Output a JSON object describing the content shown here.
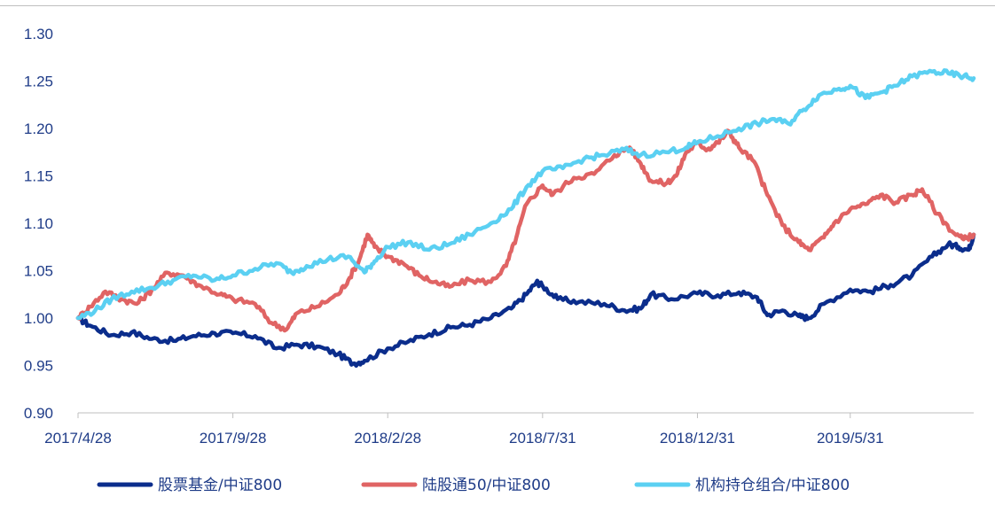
{
  "chart_data": {
    "type": "line",
    "title": "",
    "xlabel": "",
    "ylabel": "",
    "x_tick_labels": [
      "2017/4/28",
      "2017/9/28",
      "2018/2/28",
      "2018/7/31",
      "2018/12/31",
      "2019/5/31"
    ],
    "x_range": [
      "2017/4/28",
      "2019/9/30"
    ],
    "y_ticks": [
      "0.90",
      "0.95",
      "1.00",
      "1.05",
      "1.10",
      "1.15",
      "1.20",
      "1.25",
      "1.30"
    ],
    "ylim": [
      0.9,
      1.3
    ],
    "grid": false,
    "legend_position": "bottom",
    "series": [
      {
        "name": "股票基金/中证800",
        "color": "#0b2d8c",
        "points": [
          [
            "2017/4/28",
            1.0
          ],
          [
            "2017/5/10",
            0.992
          ],
          [
            "2017/5/31",
            0.982
          ],
          [
            "2017/6/20",
            0.985
          ],
          [
            "2017/7/10",
            0.978
          ],
          [
            "2017/7/31",
            0.976
          ],
          [
            "2017/8/20",
            0.981
          ],
          [
            "2017/9/10",
            0.984
          ],
          [
            "2017/9/28",
            0.984
          ],
          [
            "2017/10/20",
            0.981
          ],
          [
            "2017/11/10",
            0.968
          ],
          [
            "2017/11/30",
            0.972
          ],
          [
            "2017/12/20",
            0.97
          ],
          [
            "2018/1/10",
            0.962
          ],
          [
            "2018/1/25",
            0.952
          ],
          [
            "2018/2/5",
            0.955
          ],
          [
            "2018/2/28",
            0.968
          ],
          [
            "2018/3/20",
            0.975
          ],
          [
            "2018/4/10",
            0.983
          ],
          [
            "2018/5/1",
            0.99
          ],
          [
            "2018/5/20",
            0.993
          ],
          [
            "2018/6/10",
            1.0
          ],
          [
            "2018/6/30",
            1.01
          ],
          [
            "2018/7/15",
            1.025
          ],
          [
            "2018/7/25",
            1.038
          ],
          [
            "2018/7/31",
            1.034
          ],
          [
            "2018/8/15",
            1.02
          ],
          [
            "2018/9/5",
            1.017
          ],
          [
            "2018/9/30",
            1.015
          ],
          [
            "2018/10/20",
            1.008
          ],
          [
            "2018/11/5",
            1.01
          ],
          [
            "2018/11/15",
            1.025
          ],
          [
            "2018/12/5",
            1.02
          ],
          [
            "2018/12/31",
            1.026
          ],
          [
            "2019/1/20",
            1.024
          ],
          [
            "2019/2/10",
            1.027
          ],
          [
            "2019/2/28",
            1.022
          ],
          [
            "2019/3/10",
            1.003
          ],
          [
            "2019/3/25",
            1.008
          ],
          [
            "2019/4/10",
            1.002
          ],
          [
            "2019/4/20",
            1.0
          ],
          [
            "2019/5/5",
            1.015
          ],
          [
            "2019/5/31",
            1.03
          ],
          [
            "2019/6/20",
            1.028
          ],
          [
            "2019/7/10",
            1.035
          ],
          [
            "2019/7/31",
            1.045
          ],
          [
            "2019/8/20",
            1.065
          ],
          [
            "2019/9/5",
            1.078
          ],
          [
            "2019/9/15",
            1.075
          ],
          [
            "2019/9/25",
            1.072
          ],
          [
            "2019/9/30",
            1.088
          ]
        ]
      },
      {
        "name": "陆股通50/中证800",
        "color": "#e06464",
        "points": [
          [
            "2017/4/28",
            1.0
          ],
          [
            "2017/5/10",
            1.012
          ],
          [
            "2017/5/25",
            1.028
          ],
          [
            "2017/6/10",
            1.02
          ],
          [
            "2017/6/25",
            1.015
          ],
          [
            "2017/7/10",
            1.03
          ],
          [
            "2017/7/25",
            1.048
          ],
          [
            "2017/8/10",
            1.045
          ],
          [
            "2017/8/25",
            1.035
          ],
          [
            "2017/9/15",
            1.025
          ],
          [
            "2017/9/28",
            1.02
          ],
          [
            "2017/10/20",
            1.015
          ],
          [
            "2017/11/5",
            0.995
          ],
          [
            "2017/11/20",
            0.988
          ],
          [
            "2017/11/30",
            1.005
          ],
          [
            "2017/12/20",
            1.012
          ],
          [
            "2018/1/10",
            1.025
          ],
          [
            "2018/1/20",
            1.04
          ],
          [
            "2018/1/31",
            1.062
          ],
          [
            "2018/2/8",
            1.088
          ],
          [
            "2018/2/15",
            1.075
          ],
          [
            "2018/2/28",
            1.065
          ],
          [
            "2018/3/15",
            1.058
          ],
          [
            "2018/3/31",
            1.045
          ],
          [
            "2018/4/15",
            1.038
          ],
          [
            "2018/4/30",
            1.033
          ],
          [
            "2018/5/20",
            1.04
          ],
          [
            "2018/6/10",
            1.038
          ],
          [
            "2018/6/25",
            1.055
          ],
          [
            "2018/7/5",
            1.085
          ],
          [
            "2018/7/15",
            1.12
          ],
          [
            "2018/7/31",
            1.14
          ],
          [
            "2018/8/10",
            1.13
          ],
          [
            "2018/8/31",
            1.148
          ],
          [
            "2018/9/20",
            1.152
          ],
          [
            "2018/10/10",
            1.172
          ],
          [
            "2018/10/25",
            1.18
          ],
          [
            "2018/11/5",
            1.163
          ],
          [
            "2018/11/15",
            1.145
          ],
          [
            "2018/11/30",
            1.142
          ],
          [
            "2018/12/10",
            1.15
          ],
          [
            "2018/12/20",
            1.175
          ],
          [
            "2018/12/31",
            1.185
          ],
          [
            "2019/1/10",
            1.178
          ],
          [
            "2019/1/20",
            1.185
          ],
          [
            "2019/1/31",
            1.197
          ],
          [
            "2019/2/10",
            1.18
          ],
          [
            "2019/2/25",
            1.165
          ],
          [
            "2019/3/10",
            1.13
          ],
          [
            "2019/3/25",
            1.098
          ],
          [
            "2019/4/10",
            1.08
          ],
          [
            "2019/4/20",
            1.072
          ],
          [
            "2019/5/5",
            1.085
          ],
          [
            "2019/5/15",
            1.1
          ],
          [
            "2019/5/31",
            1.115
          ],
          [
            "2019/6/15",
            1.12
          ],
          [
            "2019/6/30",
            1.13
          ],
          [
            "2019/7/15",
            1.122
          ],
          [
            "2019/7/31",
            1.13
          ],
          [
            "2019/8/10",
            1.136
          ],
          [
            "2019/8/25",
            1.11
          ],
          [
            "2019/9/10",
            1.09
          ],
          [
            "2019/9/20",
            1.083
          ],
          [
            "2019/9/30",
            1.088
          ]
        ]
      },
      {
        "name": "机构持仓组合/中证800",
        "color": "#5bd0f2",
        "points": [
          [
            "2017/4/28",
            1.0
          ],
          [
            "2017/5/15",
            1.008
          ],
          [
            "2017/5/31",
            1.02
          ],
          [
            "2017/6/20",
            1.028
          ],
          [
            "2017/7/10",
            1.032
          ],
          [
            "2017/7/31",
            1.04
          ],
          [
            "2017/8/20",
            1.045
          ],
          [
            "2017/9/10",
            1.04
          ],
          [
            "2017/9/28",
            1.045
          ],
          [
            "2017/10/20",
            1.052
          ],
          [
            "2017/11/10",
            1.058
          ],
          [
            "2017/11/25",
            1.048
          ],
          [
            "2017/12/10",
            1.055
          ],
          [
            "2017/12/31",
            1.062
          ],
          [
            "2018/1/20",
            1.065
          ],
          [
            "2018/2/5",
            1.048
          ],
          [
            "2018/2/15",
            1.06
          ],
          [
            "2018/2/28",
            1.075
          ],
          [
            "2018/3/20",
            1.08
          ],
          [
            "2018/4/10",
            1.072
          ],
          [
            "2018/4/30",
            1.078
          ],
          [
            "2018/5/20",
            1.088
          ],
          [
            "2018/6/10",
            1.1
          ],
          [
            "2018/6/30",
            1.115
          ],
          [
            "2018/7/15",
            1.138
          ],
          [
            "2018/7/31",
            1.155
          ],
          [
            "2018/8/20",
            1.158
          ],
          [
            "2018/9/10",
            1.168
          ],
          [
            "2018/9/30",
            1.172
          ],
          [
            "2018/10/20",
            1.178
          ],
          [
            "2018/11/5",
            1.172
          ],
          [
            "2018/11/30",
            1.175
          ],
          [
            "2018/12/20",
            1.18
          ],
          [
            "2018/12/31",
            1.185
          ],
          [
            "2019/1/20",
            1.192
          ],
          [
            "2019/2/10",
            1.2
          ],
          [
            "2019/2/28",
            1.205
          ],
          [
            "2019/3/15",
            1.21
          ],
          [
            "2019/3/31",
            1.205
          ],
          [
            "2019/4/15",
            1.22
          ],
          [
            "2019/4/30",
            1.235
          ],
          [
            "2019/5/20",
            1.242
          ],
          [
            "2019/5/31",
            1.245
          ],
          [
            "2019/6/15",
            1.232
          ],
          [
            "2019/6/30",
            1.238
          ],
          [
            "2019/7/15",
            1.245
          ],
          [
            "2019/7/31",
            1.255
          ],
          [
            "2019/8/20",
            1.26
          ],
          [
            "2019/9/5",
            1.258
          ],
          [
            "2019/9/20",
            1.255
          ],
          [
            "2019/9/30",
            1.253
          ]
        ]
      }
    ]
  }
}
